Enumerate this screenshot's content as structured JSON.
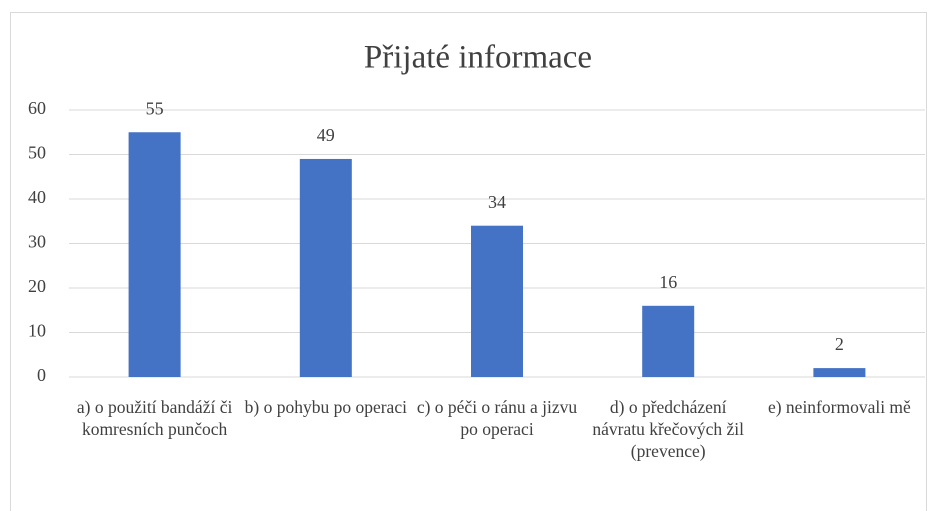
{
  "chart_data": {
    "type": "bar",
    "title": "Přijaté informace",
    "categories": [
      "a) o použití bandáží či komresních punčoch",
      "b) o pohybu po operaci",
      "c) o péči o ránu a jizvu po operaci",
      "d) o předcházení návratu křečových žil (prevence)",
      "e) neinformovali mě"
    ],
    "values": [
      55,
      49,
      34,
      16,
      2
    ],
    "color": "#4472c4",
    "ylim": [
      0,
      60
    ],
    "yticks": [
      0,
      10,
      20,
      30,
      40,
      50,
      60
    ],
    "grid": true,
    "data_labels": true
  }
}
